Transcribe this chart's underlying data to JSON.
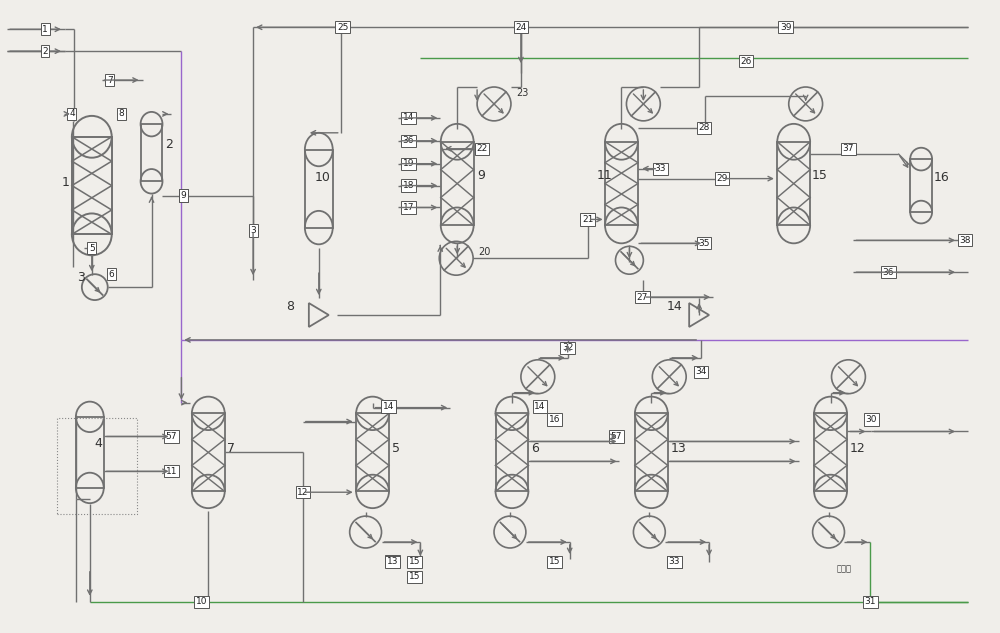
{
  "bg_color": "#f0eeea",
  "line_color": "#707070",
  "fig_width": 10.0,
  "fig_height": 6.33,
  "dpi": 100
}
